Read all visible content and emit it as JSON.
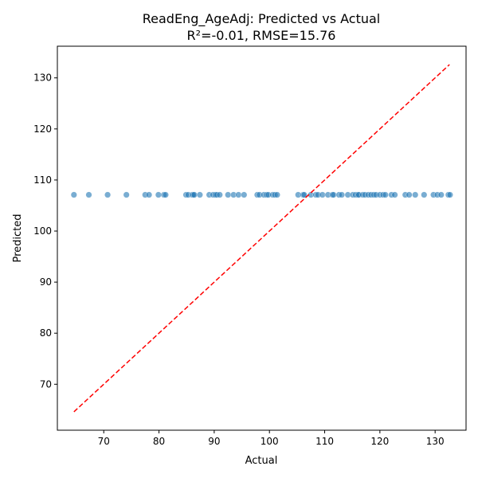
{
  "chart_data": {
    "type": "scatter",
    "title": "ReadEng_AgeAdj: Predicted vs Actual",
    "subtitle": "R²=-0.01, RMSE=15.76",
    "xlabel": "Actual",
    "ylabel": "Predicted",
    "xlim": [
      61.6,
      135.6
    ],
    "ylim": [
      61.0,
      136.2
    ],
    "x_ticks": [
      70,
      80,
      90,
      100,
      110,
      120,
      130
    ],
    "y_ticks": [
      70,
      80,
      90,
      100,
      110,
      120,
      130
    ],
    "grid": false,
    "point_color": "#1f77b4",
    "reference_line": {
      "color": "#ff0000",
      "style": "dashed",
      "x": [
        64.6,
        132.6
      ],
      "y": [
        64.6,
        132.6
      ]
    },
    "x": [
      64.6,
      67.3,
      70.7,
      74.1,
      77.5,
      78.2,
      79.9,
      80.9,
      81.2,
      84.9,
      85.3,
      86.0,
      86.2,
      86.4,
      87.4,
      89.1,
      89.8,
      90.2,
      90.5,
      91.0,
      92.5,
      93.5,
      94.4,
      95.4,
      97.8,
      98.2,
      99.0,
      99.5,
      99.8,
      100.6,
      101.0,
      101.4,
      105.2,
      106.1,
      106.3,
      107.5,
      108.4,
      108.8,
      109.6,
      110.6,
      111.4,
      111.6,
      112.6,
      113.1,
      114.2,
      115.1,
      115.6,
      116.0,
      116.2,
      116.9,
      117.3,
      117.9,
      118.4,
      118.9,
      119.3,
      120.0,
      120.6,
      121.0,
      122.1,
      122.7,
      124.6,
      125.3,
      126.4,
      128.0,
      129.7,
      130.4,
      131.1,
      132.4,
      132.7
    ],
    "y": [
      107.1,
      107.1,
      107.1,
      107.1,
      107.1,
      107.1,
      107.1,
      107.1,
      107.1,
      107.1,
      107.1,
      107.1,
      107.1,
      107.1,
      107.1,
      107.1,
      107.1,
      107.1,
      107.1,
      107.1,
      107.1,
      107.1,
      107.1,
      107.1,
      107.1,
      107.1,
      107.1,
      107.1,
      107.1,
      107.1,
      107.1,
      107.1,
      107.1,
      107.1,
      107.1,
      107.1,
      107.1,
      107.1,
      107.1,
      107.1,
      107.1,
      107.1,
      107.1,
      107.1,
      107.1,
      107.1,
      107.1,
      107.1,
      107.1,
      107.1,
      107.1,
      107.1,
      107.1,
      107.1,
      107.1,
      107.1,
      107.1,
      107.1,
      107.1,
      107.1,
      107.1,
      107.1,
      107.1,
      107.1,
      107.1,
      107.1,
      107.1,
      107.1,
      107.1
    ]
  }
}
